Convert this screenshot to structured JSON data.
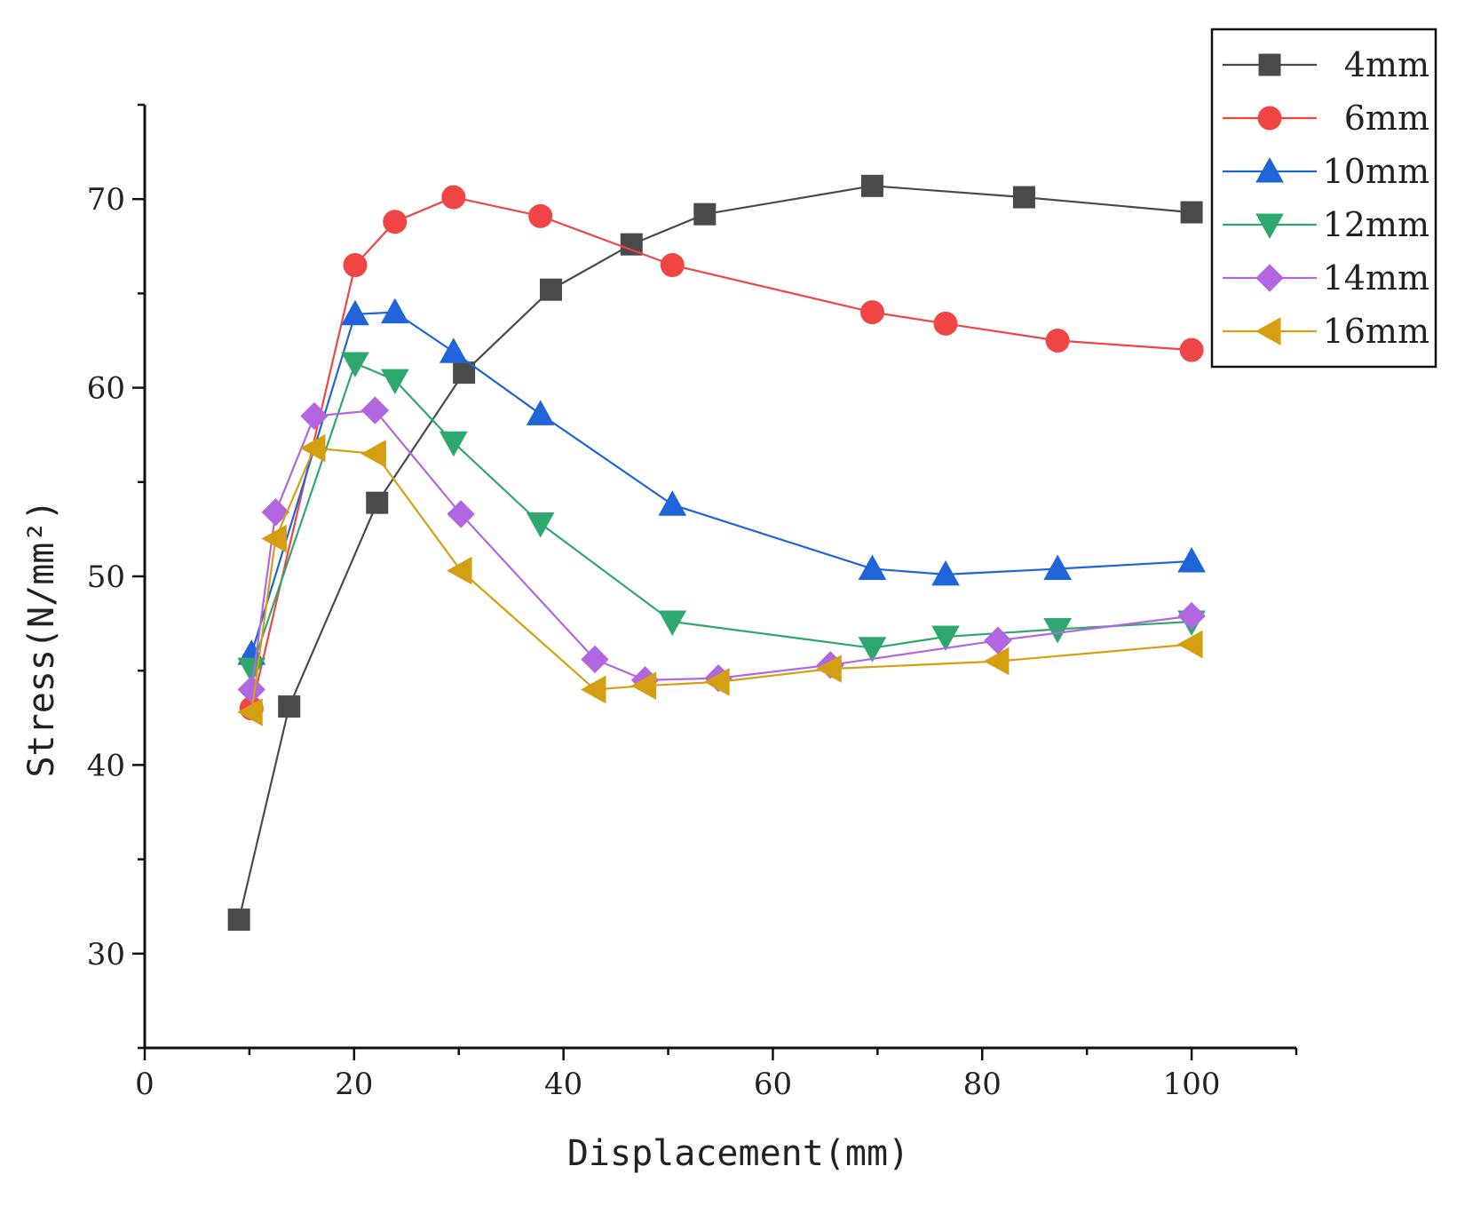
{
  "chart_data": {
    "type": "line",
    "title": "",
    "xlabel": "Displacement(mm)",
    "ylabel": "Stress(N/mm²)",
    "xlim": [
      0,
      110
    ],
    "ylim": [
      25,
      75
    ],
    "x_ticks": [
      0,
      20,
      40,
      60,
      80,
      100
    ],
    "x_tick_labels": [
      "0",
      "20",
      "40",
      "60",
      "80",
      "100"
    ],
    "y_ticks": [
      30,
      40,
      50,
      60,
      70
    ],
    "y_tick_labels": [
      "30",
      "40",
      "50",
      "60",
      "70"
    ],
    "legend_position": "top-right",
    "series": [
      {
        "name": "4mm",
        "color": "#4a4a4a",
        "marker": "square",
        "x": [
          9,
          13.8,
          22.2,
          30.5,
          38.8,
          46.5,
          53.5,
          69.5,
          84,
          100
        ],
        "y": [
          31.8,
          43.1,
          53.9,
          60.8,
          65.2,
          67.6,
          69.2,
          70.7,
          70.1,
          69.3
        ]
      },
      {
        "name": "6mm",
        "color": "#f04545",
        "marker": "circle",
        "x": [
          10.2,
          20.1,
          23.9,
          29.5,
          37.8,
          50.4,
          69.5,
          76.5,
          87.2,
          100
        ],
        "y": [
          43.0,
          66.5,
          68.8,
          70.1,
          69.1,
          66.5,
          64.0,
          63.4,
          62.5,
          62.0
        ]
      },
      {
        "name": "10mm",
        "color": "#1f64d8",
        "marker": "triangle-up",
        "x": [
          10.2,
          20.1,
          23.9,
          29.5,
          37.8,
          50.4,
          69.5,
          76.5,
          87.2,
          100
        ],
        "y": [
          45.9,
          63.9,
          64.0,
          61.9,
          58.6,
          53.8,
          50.4,
          50.1,
          50.4,
          50.8
        ]
      },
      {
        "name": "12mm",
        "color": "#2fa86f",
        "marker": "triangle-down",
        "x": [
          10.2,
          20.1,
          23.9,
          29.5,
          37.8,
          50.4,
          69.5,
          76.5,
          87.2,
          100
        ],
        "y": [
          45.1,
          61.3,
          60.4,
          57.1,
          52.8,
          47.6,
          46.2,
          46.8,
          47.2,
          47.6
        ]
      },
      {
        "name": "14mm",
        "color": "#b266e0",
        "marker": "diamond",
        "x": [
          10.2,
          12.5,
          16.2,
          22.0,
          30.2,
          43.0,
          47.8,
          54.8,
          65.5,
          81.5,
          100
        ],
        "y": [
          44.0,
          53.4,
          58.5,
          58.8,
          53.3,
          45.6,
          44.5,
          44.6,
          45.3,
          46.6,
          47.9
        ]
      },
      {
        "name": "16mm",
        "color": "#d4a012",
        "marker": "triangle-left",
        "x": [
          10.2,
          12.5,
          16.2,
          22.0,
          30.2,
          43.0,
          47.8,
          54.8,
          65.5,
          81.5,
          100
        ],
        "y": [
          42.8,
          52.0,
          56.8,
          56.5,
          50.3,
          44.0,
          44.2,
          44.4,
          45.1,
          45.5,
          46.4
        ]
      }
    ]
  }
}
